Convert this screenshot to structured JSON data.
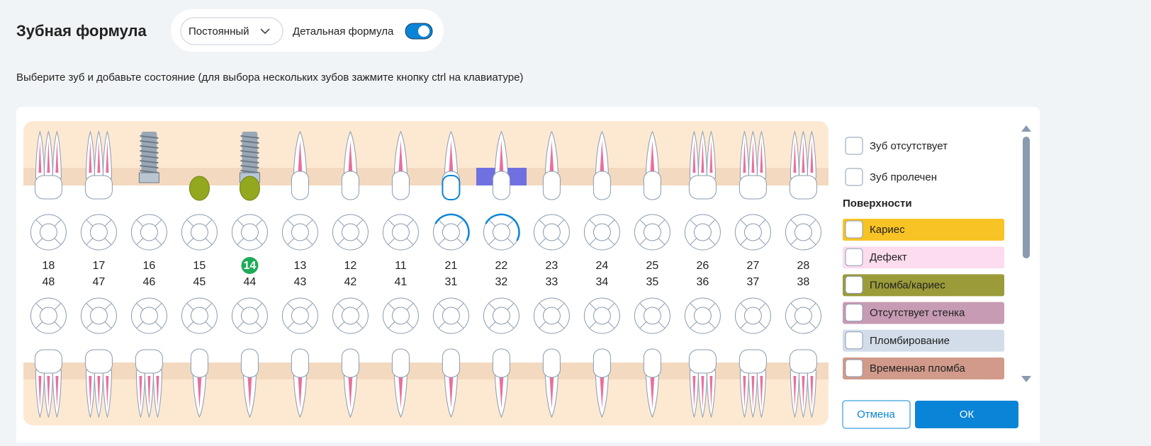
{
  "header": {
    "title": "Зубная формула",
    "dentition": "Постоянный",
    "toggle_label": "Детальная формула"
  },
  "instruction": "Выберите зуб и добавьте состояние (для выбора нескольких зубов зажмите кнопку ctrl на клавиатуре)",
  "teeth": {
    "upper": [
      "18",
      "17",
      "16",
      "15",
      "14",
      "13",
      "12",
      "11",
      "21",
      "22",
      "23",
      "24",
      "25",
      "26",
      "27",
      "28"
    ],
    "lower": [
      "48",
      "47",
      "46",
      "45",
      "44",
      "43",
      "42",
      "41",
      "31",
      "32",
      "33",
      "34",
      "35",
      "36",
      "37",
      "38"
    ]
  },
  "panel": {
    "checkboxes": [
      "Зуб отсутствует",
      "Зуб пролечен"
    ],
    "surfaces_title": "Поверхности",
    "surfaces": [
      {
        "name": "Кариес",
        "color": "#f8c325"
      },
      {
        "name": "Дефект",
        "color": "#fddcef"
      },
      {
        "name": "Пломба/кариес",
        "color": "#9b9b3a"
      },
      {
        "name": "Отсутствует стенка",
        "color": "#c79bb3"
      },
      {
        "name": "Пломбирование",
        "color": "#d3dde9"
      },
      {
        "name": "Временная пломба",
        "color": "#d29a8a"
      }
    ],
    "cancel": "Отмена",
    "ok": "ОК"
  }
}
